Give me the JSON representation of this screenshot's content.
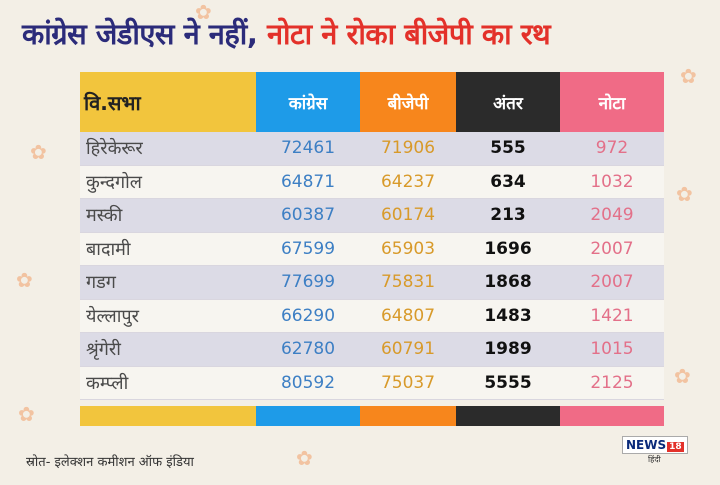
{
  "headline": {
    "part1": "कांग्रेस जेडीएस ने नहीं,",
    "part2": "नोटा ने रोका बीजेपी का रथ"
  },
  "colors": {
    "c0": "#f2c53d",
    "c1": "#1e9be8",
    "c2": "#f7861c",
    "c3": "#2b2b2b",
    "c4": "#f06b86"
  },
  "table": {
    "headers": [
      "वि.सभा",
      "कांग्रेस",
      "बीजेपी",
      "अंतर",
      "नोटा"
    ],
    "rows": [
      [
        "हिरेकेरूर",
        "72461",
        "71906",
        "555",
        "972"
      ],
      [
        "कुन्दगोल",
        "64871",
        "64237",
        "634",
        "1032"
      ],
      [
        "मस्की",
        "60387",
        "60174",
        "213",
        "2049"
      ],
      [
        "बादामी",
        "67599",
        "65903",
        "1696",
        "2007"
      ],
      [
        "गडग",
        "77699",
        "75831",
        "1868",
        "2007"
      ],
      [
        "येल्लापुर",
        "66290",
        "64807",
        "1483",
        "1421"
      ],
      [
        "श्रृंगेरी",
        "62780",
        "60791",
        "1989",
        "1015"
      ],
      [
        "कम्प्ली",
        "80592",
        "75037",
        "5555",
        "2125"
      ]
    ]
  },
  "footer": {
    "source": "स्रोत- इलेक्शन कमीशन ऑफ इंडिया",
    "logo": "NEWS",
    "logo_num": "18",
    "logo_sub": "हिंदी"
  }
}
